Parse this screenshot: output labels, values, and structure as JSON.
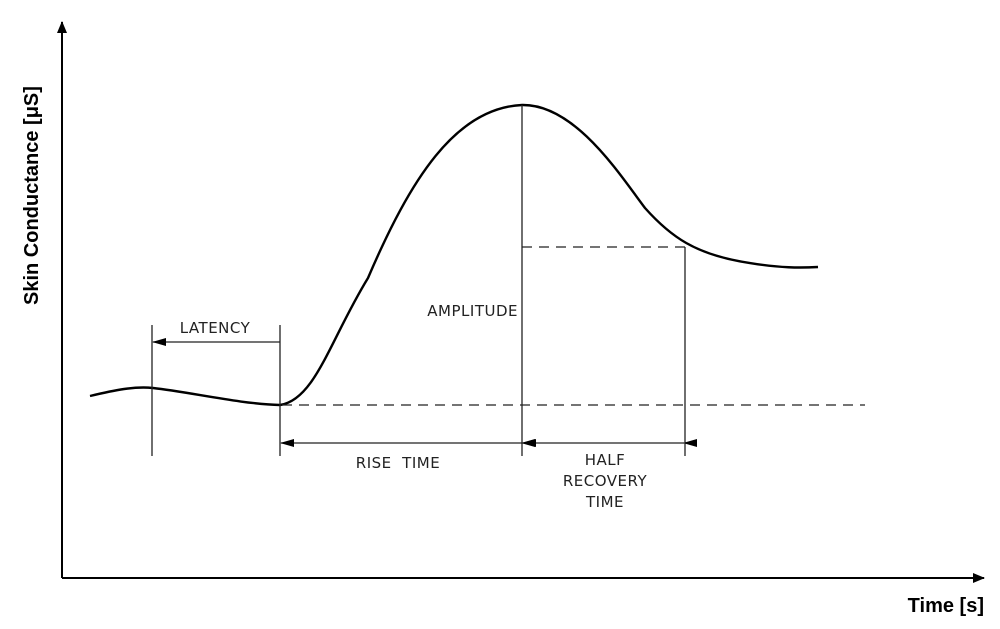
{
  "axes": {
    "x_label": "Time [s]",
    "y_label": "Skin Conductance [μS]"
  },
  "annotations": {
    "latency": "LATENCY",
    "amplitude": "AMPLITUDE",
    "rise_time": "RISE  TIME",
    "half_recovery": [
      "HALF",
      "RECOVERY",
      "TIME"
    ]
  }
}
